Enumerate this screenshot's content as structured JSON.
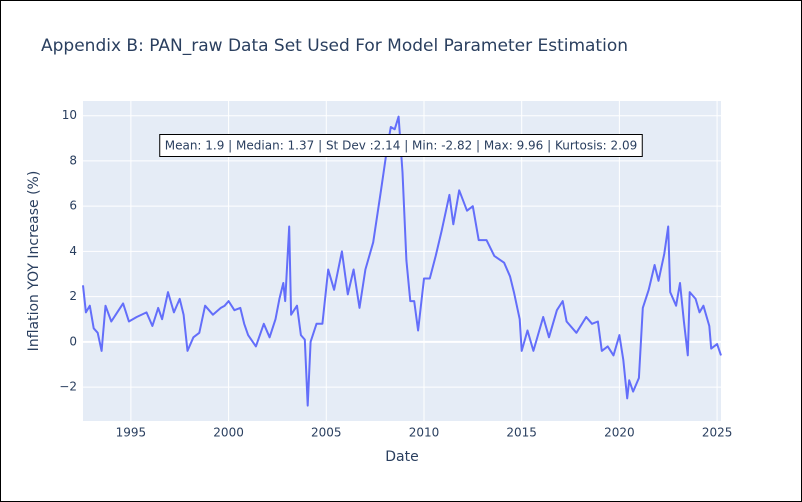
{
  "chart_data": {
    "type": "line",
    "title": "Appendix B: PAN_raw Data Set Used For Model Parameter Estimation",
    "x_label": "Date",
    "y_label": "Inflation YOY Increase (%)",
    "annotation": "Mean: 1.9 | Median: 1.37 | St Dev :2.14 | Min: -2.82 | Max: 9.96 | Kurtosis: 2.09",
    "x": [
      1992.55,
      1992.7,
      1992.9,
      1993.1,
      1993.3,
      1993.5,
      1993.7,
      1994.0,
      1994.3,
      1994.6,
      1994.9,
      1995.3,
      1995.8,
      1996.1,
      1996.4,
      1996.6,
      1996.9,
      1997.2,
      1997.5,
      1997.7,
      1997.9,
      1998.2,
      1998.5,
      1998.8,
      1999.2,
      1999.6,
      1999.8,
      2000.0,
      2000.3,
      2000.6,
      2000.8,
      2001.0,
      2001.4,
      2001.8,
      2002.1,
      2002.4,
      2002.6,
      2002.8,
      2002.9,
      2003.1,
      2003.2,
      2003.5,
      2003.7,
      2003.9,
      2004.05,
      2004.2,
      2004.5,
      2004.8,
      2005.1,
      2005.4,
      2005.8,
      2006.1,
      2006.4,
      2006.7,
      2007.0,
      2007.4,
      2007.8,
      2008.1,
      2008.3,
      2008.5,
      2008.7,
      2008.9,
      2009.1,
      2009.3,
      2009.5,
      2009.7,
      2010.0,
      2010.3,
      2010.6,
      2010.9,
      2011.3,
      2011.5,
      2011.8,
      2012.2,
      2012.5,
      2012.8,
      2013.2,
      2013.6,
      2014.1,
      2014.4,
      2014.6,
      2014.9,
      2015.0,
      2015.3,
      2015.6,
      2016.1,
      2016.4,
      2016.8,
      2017.1,
      2017.3,
      2017.8,
      2018.3,
      2018.6,
      2018.9,
      2019.1,
      2019.4,
      2019.7,
      2020.0,
      2020.2,
      2020.4,
      2020.5,
      2020.7,
      2021.0,
      2021.2,
      2021.5,
      2021.8,
      2022.0,
      2022.3,
      2022.5,
      2022.6,
      2022.9,
      2023.1,
      2023.3,
      2023.5,
      2023.6,
      2023.9,
      2024.1,
      2024.3,
      2024.6,
      2024.7,
      2025.0,
      2025.2
    ],
    "series": [
      {
        "name": "PAN_raw",
        "color": "#636efa",
        "values": [
          2.5,
          1.3,
          1.6,
          0.6,
          0.4,
          -0.4,
          1.6,
          0.9,
          1.3,
          1.7,
          0.9,
          1.1,
          1.3,
          0.7,
          1.5,
          1.0,
          2.2,
          1.3,
          1.9,
          1.2,
          -0.4,
          0.2,
          0.4,
          1.6,
          1.2,
          1.5,
          1.6,
          1.8,
          1.4,
          1.5,
          0.8,
          0.3,
          -0.2,
          0.8,
          0.2,
          1.0,
          1.9,
          2.6,
          1.8,
          5.1,
          1.2,
          1.6,
          0.3,
          0.1,
          -2.82,
          0.0,
          0.8,
          0.8,
          3.2,
          2.3,
          4.0,
          2.1,
          3.2,
          1.5,
          3.2,
          4.4,
          6.7,
          8.5,
          9.5,
          9.4,
          9.96,
          7.5,
          3.6,
          1.8,
          1.8,
          0.5,
          2.8,
          2.8,
          3.8,
          4.9,
          6.5,
          5.2,
          6.7,
          5.8,
          6.0,
          4.5,
          4.5,
          3.8,
          3.5,
          2.9,
          2.2,
          1.0,
          -0.4,
          0.5,
          -0.4,
          1.1,
          0.2,
          1.4,
          1.8,
          0.9,
          0.4,
          1.1,
          0.8,
          0.9,
          -0.4,
          -0.2,
          -0.6,
          0.3,
          -0.8,
          -2.5,
          -1.7,
          -2.2,
          -1.6,
          1.5,
          2.3,
          3.4,
          2.7,
          3.9,
          5.1,
          2.2,
          1.6,
          2.6,
          0.9,
          -0.6,
          2.2,
          1.9,
          1.3,
          1.6,
          0.7,
          -0.3,
          -0.1,
          -0.6
        ]
      }
    ],
    "xlim": [
      1992.55,
      2025.2
    ],
    "xticks": [
      1995,
      2000,
      2005,
      2010,
      2015,
      2020,
      2025
    ],
    "ylim": [
      -3.5,
      10.65
    ],
    "yticks": [
      {
        "value": -2,
        "label": "−2"
      },
      0,
      2,
      4,
      6,
      8,
      10
    ],
    "grid": true
  }
}
